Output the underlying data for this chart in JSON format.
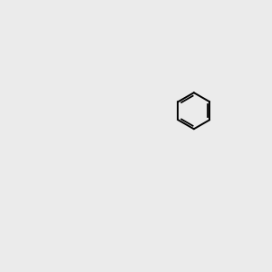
{
  "bg_color": "#ebebeb",
  "fig_size": [
    3.0,
    3.0
  ],
  "dpi": 100,
  "atom_colors": {
    "C": "#000000",
    "N": "#1010ee",
    "O": "#ee2200",
    "S": "#cccc00",
    "H": "#008888"
  },
  "bond_color": "#000000",
  "bond_width": 1.4,
  "font_size_atom": 8.5
}
